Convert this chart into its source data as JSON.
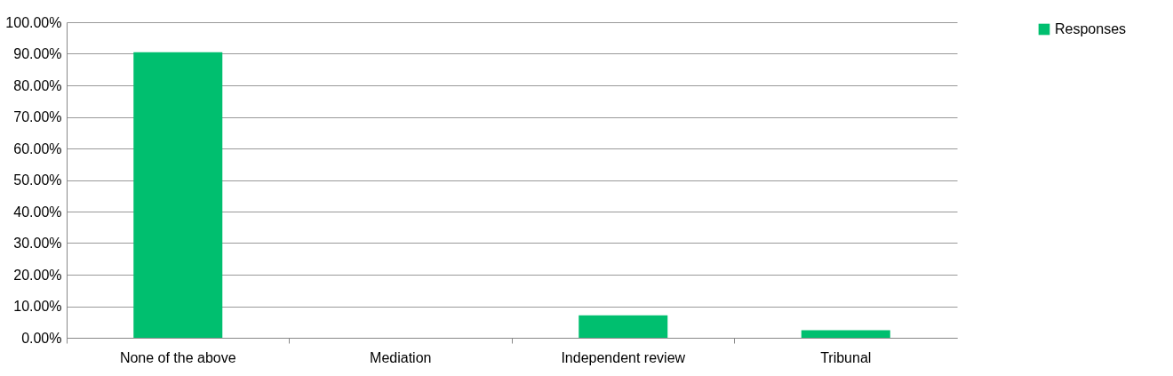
{
  "chart_data": {
    "type": "bar",
    "categories": [
      "None of the above",
      "Mediation",
      "Independent review",
      "Tribunal"
    ],
    "series": [
      {
        "name": "Responses",
        "color": "#00bf6f",
        "values": [
          90.5,
          0,
          7.1,
          2.4
        ]
      }
    ],
    "ylim": [
      0,
      100
    ],
    "yticks": [
      {
        "value": 0,
        "label": "0.00%"
      },
      {
        "value": 10,
        "label": "10.00%"
      },
      {
        "value": 20,
        "label": "20.00%"
      },
      {
        "value": 30,
        "label": "30.00%"
      },
      {
        "value": 40,
        "label": "40.00%"
      },
      {
        "value": 50,
        "label": "50.00%"
      },
      {
        "value": 60,
        "label": "60.00%"
      },
      {
        "value": 70,
        "label": "70.00%"
      },
      {
        "value": 80,
        "label": "80.00%"
      },
      {
        "value": 90,
        "label": "90.00%"
      },
      {
        "value": 100,
        "label": "100.00%"
      }
    ],
    "grid": "y",
    "legend": "right"
  }
}
